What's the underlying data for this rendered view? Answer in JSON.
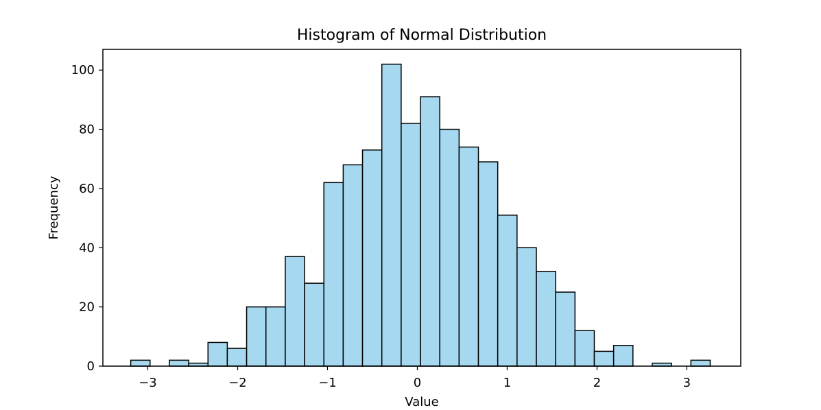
{
  "chart_data": {
    "type": "bar",
    "title": "Histogram of Normal Distribution",
    "xlabel": "Value",
    "ylabel": "Frequency",
    "bar_color": "#a6d8f0",
    "edge_color": "#000000",
    "xlim": [
      -3.5,
      3.6
    ],
    "ylim": [
      0,
      107
    ],
    "xticks": [
      {
        "value": -3,
        "label": "−3"
      },
      {
        "value": -2,
        "label": "−2"
      },
      {
        "value": -1,
        "label": "−1"
      },
      {
        "value": 0,
        "label": "0"
      },
      {
        "value": 1,
        "label": "1"
      },
      {
        "value": 2,
        "label": "2"
      },
      {
        "value": 3,
        "label": "3"
      }
    ],
    "yticks": [
      {
        "value": 0,
        "label": "0"
      },
      {
        "value": 20,
        "label": "20"
      },
      {
        "value": 40,
        "label": "40"
      },
      {
        "value": 60,
        "label": "60"
      },
      {
        "value": 80,
        "label": "80"
      },
      {
        "value": 100,
        "label": "100"
      }
    ],
    "bin_edges": [
      -3.19,
      -2.975,
      -2.76,
      -2.545,
      -2.33,
      -2.115,
      -1.9,
      -1.685,
      -1.47,
      -1.255,
      -1.04,
      -0.825,
      -0.61,
      -0.395,
      -0.18,
      0.035,
      0.25,
      0.465,
      0.68,
      0.895,
      1.11,
      1.325,
      1.54,
      1.755,
      1.97,
      2.185,
      2.4,
      2.615,
      2.83,
      3.045,
      3.26
    ],
    "counts": [
      2,
      0,
      2,
      1,
      8,
      6,
      20,
      20,
      37,
      28,
      62,
      68,
      73,
      102,
      82,
      91,
      80,
      74,
      69,
      51,
      40,
      32,
      25,
      12,
      5,
      7,
      0,
      1,
      0,
      2
    ]
  }
}
